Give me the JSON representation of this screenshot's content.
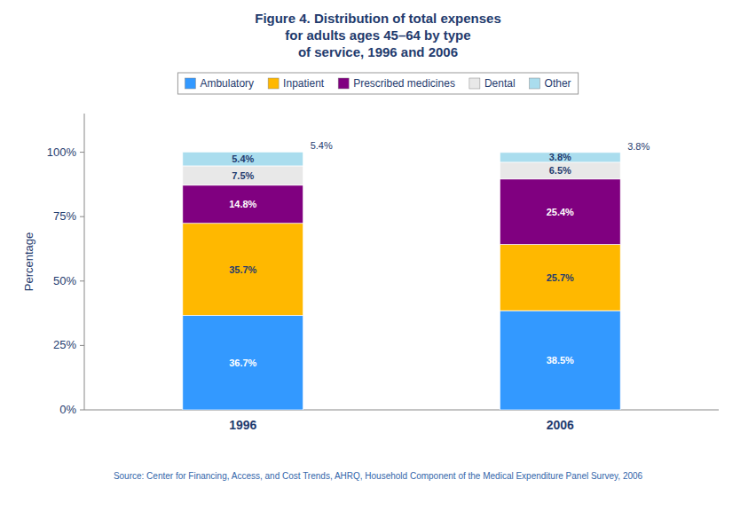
{
  "chart_data": {
    "type": "bar",
    "stacked": true,
    "title": "Figure 4. Distribution of total expenses\nfor adults ages 45–64 by type\nof service, 1996 and 2006",
    "annotations": [
      "Source: Center for Financing, Access, and Cost Trends, AHRQ, Household Component of the Medical Expenditure Panel Survey, 2006"
    ],
    "categories": [
      "1996",
      "2006"
    ],
    "series": [
      {
        "name": "Ambulatory",
        "color": "#3399FF",
        "values": [
          36.7,
          38.5
        ],
        "value_labels": [
          "36.7%",
          "38.5%"
        ]
      },
      {
        "name": "Inpatient",
        "color": "#FFB800",
        "values": [
          35.7,
          25.7
        ],
        "value_labels": [
          "35.7%",
          "25.7%"
        ]
      },
      {
        "name": "Prescribed medicines",
        "color": "#800080",
        "values": [
          14.8,
          25.4
        ],
        "value_labels": [
          "14.8%",
          "25.4%"
        ]
      },
      {
        "name": "Dental",
        "color": "#E8E8E8",
        "values": [
          7.5,
          6.5
        ],
        "value_labels": [
          "7.5%",
          "6.5%"
        ]
      },
      {
        "name": "Other",
        "color": "#AADDEE",
        "values": [
          5.4,
          3.8
        ],
        "value_labels": [
          "5.4%",
          "3.8%"
        ]
      }
    ],
    "ylabel": "Percentage",
    "ylim": [
      0,
      115
    ],
    "yticks": [
      {
        "value": 0,
        "label": "0%"
      },
      {
        "value": 25,
        "label": "25%"
      },
      {
        "value": 50,
        "label": "50%"
      },
      {
        "value": 75,
        "label": "75%"
      },
      {
        "value": 100,
        "label": "100%"
      }
    ],
    "grid": false,
    "legend": "top",
    "data_labels": true
  }
}
